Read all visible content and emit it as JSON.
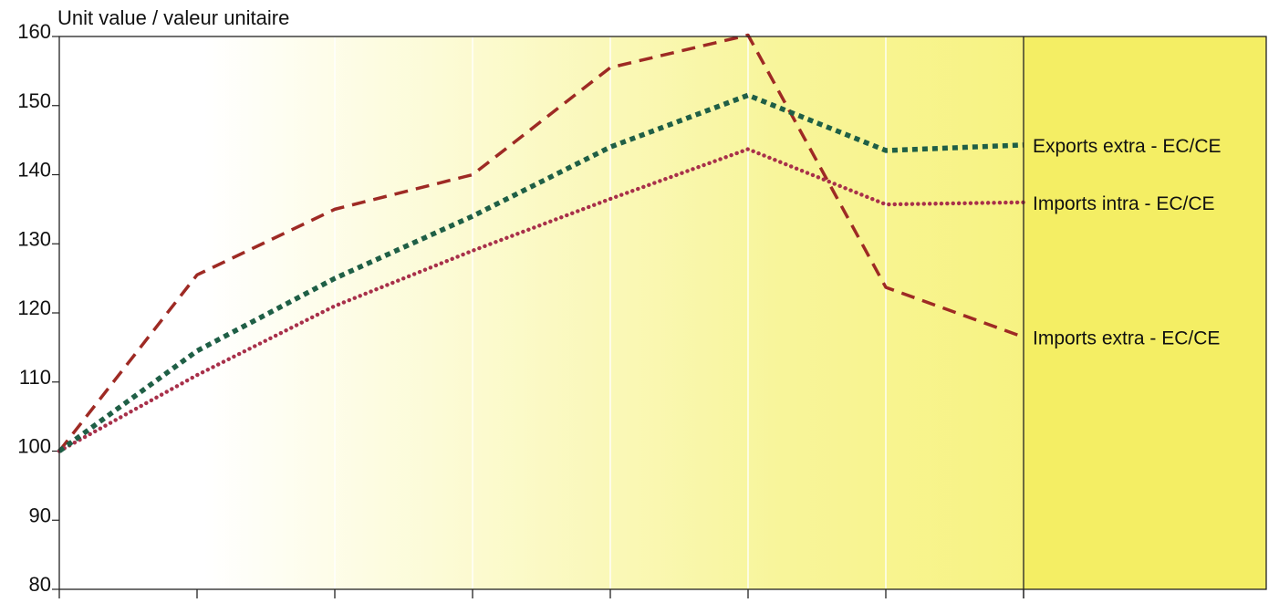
{
  "colors": {
    "background_start": "#ffffff",
    "background_end": "#f6f06a",
    "panel_right": "#f4ee64",
    "exports_extra": "#1f5f46",
    "imports_intra": "#a8304a",
    "imports_extra": "#9e2a24"
  },
  "chart_data": {
    "type": "line",
    "ylabel": "Unit value / valeur unitaire",
    "ylim": [
      80,
      160
    ],
    "yticks": [
      80,
      90,
      100,
      110,
      120,
      130,
      140,
      150,
      160
    ],
    "x": [
      0,
      1,
      2,
      3,
      4,
      5,
      6,
      7
    ],
    "x_tick_labels": [
      "",
      "",
      "",
      "",
      "",
      "",
      "",
      ""
    ],
    "grid": "vertical",
    "legend": "inline-right",
    "series": [
      {
        "name": "Exports extra - EC/CE",
        "style": "dotted-square",
        "color_key": "exports_extra",
        "values": [
          100,
          114.5,
          125,
          134,
          144,
          151.5,
          143.5,
          144.3
        ]
      },
      {
        "name": "Imports intra - EC/CE",
        "style": "dotted-round",
        "color_key": "imports_intra",
        "values": [
          100,
          111,
          121,
          129,
          136.5,
          143.7,
          135.7,
          136
        ]
      },
      {
        "name": "Imports extra - EC/CE",
        "style": "dashed",
        "color_key": "imports_extra",
        "values": [
          100,
          125.5,
          135,
          140,
          155.5,
          160.2,
          123.7,
          116.5
        ]
      }
    ]
  }
}
